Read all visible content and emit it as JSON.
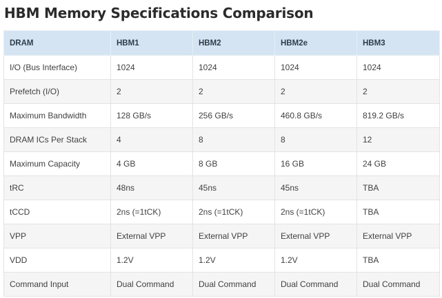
{
  "title": "HBM Memory Specifications Comparison",
  "table": {
    "headers": [
      "DRAM",
      "HBM1",
      "HBM2",
      "HBM2e",
      "HBM3"
    ],
    "rows": [
      [
        "I/O (Bus Interface)",
        "1024",
        "1024",
        "1024",
        "1024"
      ],
      [
        "Prefetch (I/O)",
        "2",
        "2",
        "2",
        "2"
      ],
      [
        "Maximum Bandwidth",
        "128 GB/s",
        "256 GB/s",
        "460.8 GB/s",
        "819.2 GB/s"
      ],
      [
        "DRAM ICs Per Stack",
        "4",
        "8",
        "8",
        "12"
      ],
      [
        "Maximum Capacity",
        "4 GB",
        "8 GB",
        "16 GB",
        "24 GB"
      ],
      [
        "tRC",
        "48ns",
        "45ns",
        "45ns",
        "TBA"
      ],
      [
        "tCCD",
        "2ns (=1tCK)",
        "2ns (=1tCK)",
        "2ns (=1tCK)",
        "TBA"
      ],
      [
        "VPP",
        "External VPP",
        "External VPP",
        "External VPP",
        "External VPP"
      ],
      [
        "VDD",
        "1.2V",
        "1.2V",
        "1.2V",
        "TBA"
      ],
      [
        "Command Input",
        "Dual Command",
        "Dual Command",
        "Dual Command",
        "Dual Command"
      ]
    ]
  },
  "colors": {
    "header_background": "#d4e4f2",
    "stripe_background": "#f5f5f5",
    "border": "#e3e3e3"
  }
}
